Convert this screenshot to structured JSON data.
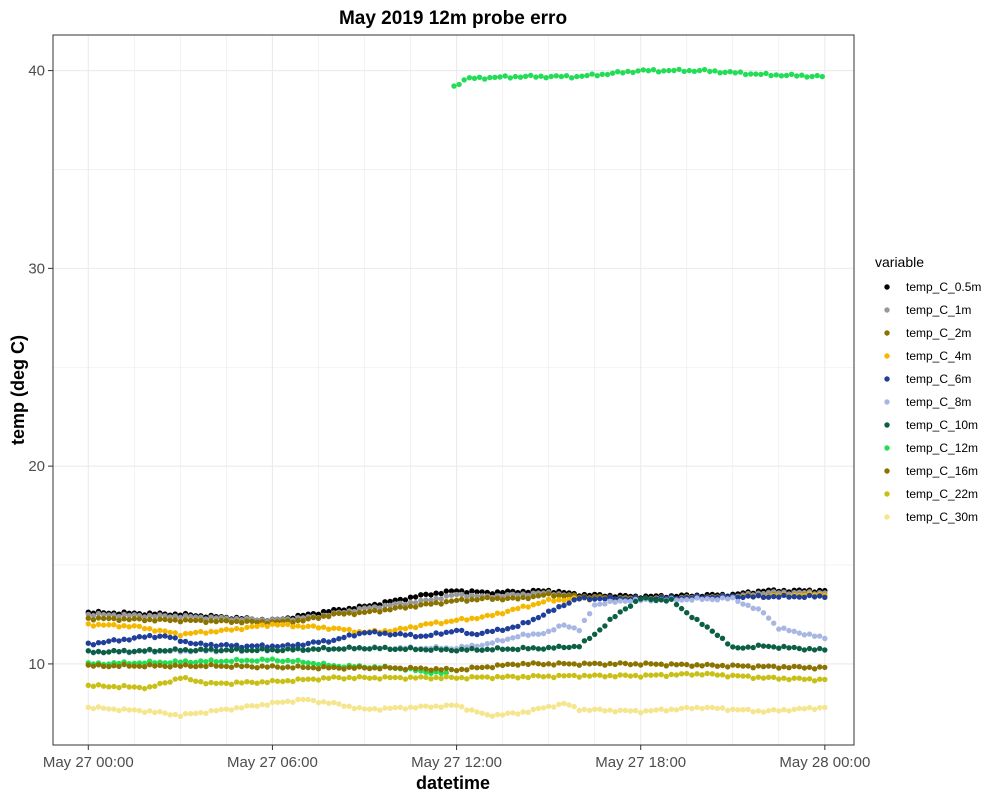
{
  "chart_data": {
    "type": "scatter",
    "title": "May 2019 12m probe erro",
    "xlabel": "datetime",
    "ylabel": "temp (deg C)",
    "x_ticks": [
      "May 27 00:00",
      "May 27 06:00",
      "May 27 12:00",
      "May 27 18:00",
      "May 28 00:00"
    ],
    "y_ticks": [
      "10",
      "20",
      "30",
      "40"
    ],
    "xlim": [
      "2019-05-26 22:51",
      "2019-05-28 00:57"
    ],
    "ylim": [
      5.9,
      41.8
    ],
    "grid": true,
    "legend": {
      "title": "variable",
      "position": "right"
    },
    "series": [
      {
        "name": "temp_C_0.5m",
        "color": "#000000",
        "anchors": [
          [
            "2019-05-27 00:00",
            12.6
          ],
          [
            "2019-05-27 03:00",
            12.5
          ],
          [
            "2019-05-27 06:00",
            12.2
          ],
          [
            "2019-05-27 08:00",
            12.7
          ],
          [
            "2019-05-27 09:00",
            12.9
          ],
          [
            "2019-05-27 10:00",
            13.2
          ],
          [
            "2019-05-27 11:00",
            13.5
          ],
          [
            "2019-05-27 12:00",
            13.7
          ],
          [
            "2019-05-27 13:00",
            13.6
          ],
          [
            "2019-05-27 15:00",
            13.7
          ],
          [
            "2019-05-27 16:00",
            13.5
          ],
          [
            "2019-05-27 18:00",
            13.4
          ],
          [
            "2019-05-27 21:00",
            13.5
          ],
          [
            "2019-05-27 22:00",
            13.7
          ],
          [
            "2019-05-28 00:00",
            13.7
          ]
        ]
      },
      {
        "name": "temp_C_1m",
        "color": "#999999",
        "anchors": [
          [
            "2019-05-27 00:00",
            12.5
          ],
          [
            "2019-05-27 03:00",
            12.4
          ],
          [
            "2019-05-27 06:00",
            12.2
          ],
          [
            "2019-05-27 07:30",
            12.4
          ],
          [
            "2019-05-27 09:00",
            12.8
          ],
          [
            "2019-05-27 10:00",
            13.0
          ],
          [
            "2019-05-27 11:00",
            13.2
          ],
          [
            "2019-05-27 12:00",
            13.5
          ],
          [
            "2019-05-27 13:00",
            13.4
          ],
          [
            "2019-05-27 15:00",
            13.6
          ],
          [
            "2019-05-27 16:00",
            13.4
          ],
          [
            "2019-05-27 18:00",
            13.3
          ],
          [
            "2019-05-27 21:00",
            13.4
          ],
          [
            "2019-05-27 22:00",
            13.6
          ],
          [
            "2019-05-28 00:00",
            13.6
          ]
        ]
      },
      {
        "name": "temp_C_2m",
        "color": "#8B7300",
        "anchors": [
          [
            "2019-05-27 00:00",
            12.3
          ],
          [
            "2019-05-27 03:00",
            12.2
          ],
          [
            "2019-05-27 06:00",
            12.1
          ],
          [
            "2019-05-27 07:00",
            12.2
          ],
          [
            "2019-05-27 08:00",
            12.5
          ],
          [
            "2019-05-27 09:00",
            12.6
          ],
          [
            "2019-05-27 10:00",
            12.8
          ],
          [
            "2019-05-27 11:00",
            13.0
          ],
          [
            "2019-05-27 12:00",
            13.2
          ],
          [
            "2019-05-27 13:00",
            13.3
          ],
          [
            "2019-05-27 14:00",
            13.3
          ],
          [
            "2019-05-27 15:00",
            13.5
          ],
          [
            "2019-05-27 16:00",
            13.4
          ],
          [
            "2019-05-27 18:00",
            13.3
          ],
          [
            "2019-05-27 21:00",
            13.4
          ],
          [
            "2019-05-28 00:00",
            13.5
          ]
        ]
      },
      {
        "name": "temp_C_4m",
        "color": "#F5B800",
        "anchors": [
          [
            "2019-05-27 00:00",
            12.0
          ],
          [
            "2019-05-27 01:30",
            11.9
          ],
          [
            "2019-05-27 03:00",
            11.5
          ],
          [
            "2019-05-27 04:30",
            11.7
          ],
          [
            "2019-05-27 06:00",
            12.0
          ],
          [
            "2019-05-27 07:00",
            11.9
          ],
          [
            "2019-05-27 08:00",
            11.8
          ],
          [
            "2019-05-27 09:00",
            11.6
          ],
          [
            "2019-05-27 10:00",
            11.7
          ],
          [
            "2019-05-27 11:00",
            12.0
          ],
          [
            "2019-05-27 12:00",
            12.2
          ],
          [
            "2019-05-27 13:00",
            12.4
          ],
          [
            "2019-05-27 14:00",
            12.8
          ],
          [
            "2019-05-27 15:00",
            13.2
          ],
          [
            "2019-05-27 16:00",
            13.3
          ],
          [
            "2019-05-27 18:00",
            13.3
          ],
          [
            "2019-05-27 21:00",
            13.4
          ],
          [
            "2019-05-28 00:00",
            13.5
          ]
        ]
      },
      {
        "name": "temp_C_6m",
        "color": "#1F3F9A",
        "anchors": [
          [
            "2019-05-27 00:00",
            11.0
          ],
          [
            "2019-05-27 01:30",
            11.3
          ],
          [
            "2019-05-27 02:00",
            11.4
          ],
          [
            "2019-05-27 02:30",
            11.4
          ],
          [
            "2019-05-27 03:30",
            11.0
          ],
          [
            "2019-05-27 05:00",
            10.9
          ],
          [
            "2019-05-27 06:30",
            10.9
          ],
          [
            "2019-05-27 08:00",
            11.2
          ],
          [
            "2019-05-27 09:00",
            11.6
          ],
          [
            "2019-05-27 10:00",
            11.5
          ],
          [
            "2019-05-27 11:00",
            11.4
          ],
          [
            "2019-05-27 12:00",
            11.7
          ],
          [
            "2019-05-27 12:30",
            11.5
          ],
          [
            "2019-05-27 13:00",
            11.6
          ],
          [
            "2019-05-27 14:00",
            11.9
          ],
          [
            "2019-05-27 15:00",
            12.6
          ],
          [
            "2019-05-27 15:30",
            13.0
          ],
          [
            "2019-05-27 16:00",
            13.3
          ],
          [
            "2019-05-27 18:00",
            13.3
          ],
          [
            "2019-05-27 21:00",
            13.4
          ],
          [
            "2019-05-28 00:00",
            13.4
          ]
        ]
      },
      {
        "name": "temp_C_8m",
        "color": "#A7B6E3",
        "anchors": [
          [
            "2019-05-27 00:00",
            10.6
          ],
          [
            "2019-05-27 06:00",
            10.7
          ],
          [
            "2019-05-27 09:00",
            10.8
          ],
          [
            "2019-05-27 12:00",
            10.8
          ],
          [
            "2019-05-27 13:00",
            11.0
          ],
          [
            "2019-05-27 14:00",
            11.4
          ],
          [
            "2019-05-27 15:00",
            11.6
          ],
          [
            "2019-05-27 15:30",
            12.0
          ],
          [
            "2019-05-27 16:00",
            11.7
          ],
          [
            "2019-05-27 16:30",
            13.0
          ],
          [
            "2019-05-27 17:30",
            13.2
          ],
          [
            "2019-05-27 21:00",
            13.3
          ],
          [
            "2019-05-27 22:00",
            12.6
          ],
          [
            "2019-05-27 22:30",
            11.8
          ],
          [
            "2019-05-28 00:00",
            11.3
          ]
        ]
      },
      {
        "name": "temp_C_10m",
        "color": "#0B5F45",
        "anchors": [
          [
            "2019-05-27 00:00",
            10.6
          ],
          [
            "2019-05-27 03:00",
            10.7
          ],
          [
            "2019-05-27 06:00",
            10.7
          ],
          [
            "2019-05-27 09:00",
            10.8
          ],
          [
            "2019-05-27 12:00",
            10.7
          ],
          [
            "2019-05-27 15:00",
            10.8
          ],
          [
            "2019-05-27 16:00",
            10.9
          ],
          [
            "2019-05-27 16:30",
            11.5
          ],
          [
            "2019-05-27 17:00",
            12.2
          ],
          [
            "2019-05-27 17:30",
            12.8
          ],
          [
            "2019-05-27 18:00",
            13.3
          ],
          [
            "2019-05-27 19:00",
            13.2
          ],
          [
            "2019-05-27 20:00",
            12.0
          ],
          [
            "2019-05-27 20:30",
            11.5
          ],
          [
            "2019-05-27 21:00",
            10.8
          ],
          [
            "2019-05-27 22:00",
            10.9
          ],
          [
            "2019-05-28 00:00",
            10.7
          ]
        ]
      },
      {
        "name": "temp_C_12m",
        "color": "#22DD55",
        "segments": [
          [
            [
              "2019-05-27 00:00",
              10.0
            ],
            [
              "2019-05-27 03:00",
              10.1
            ],
            [
              "2019-05-27 06:00",
              10.2
            ],
            [
              "2019-05-27 07:00",
              10.1
            ],
            [
              "2019-05-27 08:00",
              9.9
            ],
            [
              "2019-05-27 10:00",
              9.8
            ],
            [
              "2019-05-27 11:00",
              9.6
            ],
            [
              "2019-05-27 11:45",
              9.5
            ]
          ],
          [
            [
              "2019-05-27 11:55",
              39.2
            ],
            [
              "2019-05-27 12:20",
              39.6
            ],
            [
              "2019-05-27 14:00",
              39.7
            ],
            [
              "2019-05-27 16:00",
              39.7
            ],
            [
              "2019-05-27 18:00",
              40.0
            ],
            [
              "2019-05-27 20:00",
              40.0
            ],
            [
              "2019-05-27 22:00",
              39.8
            ],
            [
              "2019-05-28 00:00",
              39.7
            ]
          ]
        ]
      },
      {
        "name": "temp_C_16m",
        "color": "#8B7300",
        "anchors": [
          [
            "2019-05-27 00:00",
            9.9
          ],
          [
            "2019-05-27 04:00",
            9.9
          ],
          [
            "2019-05-27 08:00",
            9.8
          ],
          [
            "2019-05-27 10:00",
            9.8
          ],
          [
            "2019-05-27 12:00",
            9.7
          ],
          [
            "2019-05-27 14:00",
            10.0
          ],
          [
            "2019-05-27 18:00",
            10.0
          ],
          [
            "2019-05-27 21:00",
            9.9
          ],
          [
            "2019-05-28 00:00",
            9.8
          ]
        ]
      },
      {
        "name": "temp_C_22m",
        "color": "#C9C017",
        "anchors": [
          [
            "2019-05-27 00:00",
            8.9
          ],
          [
            "2019-05-27 02:00",
            8.8
          ],
          [
            "2019-05-27 03:00",
            9.3
          ],
          [
            "2019-05-27 04:00",
            9.0
          ],
          [
            "2019-05-27 06:00",
            9.1
          ],
          [
            "2019-05-27 08:00",
            9.3
          ],
          [
            "2019-05-27 12:00",
            9.3
          ],
          [
            "2019-05-27 16:00",
            9.4
          ],
          [
            "2019-05-27 18:00",
            9.4
          ],
          [
            "2019-05-27 20:00",
            9.5
          ],
          [
            "2019-05-27 22:00",
            9.3
          ],
          [
            "2019-05-28 00:00",
            9.2
          ]
        ]
      },
      {
        "name": "temp_C_30m",
        "color": "#F5E58C",
        "anchors": [
          [
            "2019-05-27 00:00",
            7.8
          ],
          [
            "2019-05-27 02:00",
            7.6
          ],
          [
            "2019-05-27 03:00",
            7.4
          ],
          [
            "2019-05-27 05:00",
            7.8
          ],
          [
            "2019-05-27 07:00",
            8.2
          ],
          [
            "2019-05-27 08:00",
            8.0
          ],
          [
            "2019-05-27 09:00",
            7.7
          ],
          [
            "2019-05-27 12:00",
            7.9
          ],
          [
            "2019-05-27 13:00",
            7.4
          ],
          [
            "2019-05-27 14:00",
            7.5
          ],
          [
            "2019-05-27 15:30",
            8.0
          ],
          [
            "2019-05-27 16:00",
            7.7
          ],
          [
            "2019-05-27 18:00",
            7.6
          ],
          [
            "2019-05-27 20:00",
            7.8
          ],
          [
            "2019-05-27 22:00",
            7.6
          ],
          [
            "2019-05-28 00:00",
            7.8
          ]
        ]
      }
    ]
  }
}
